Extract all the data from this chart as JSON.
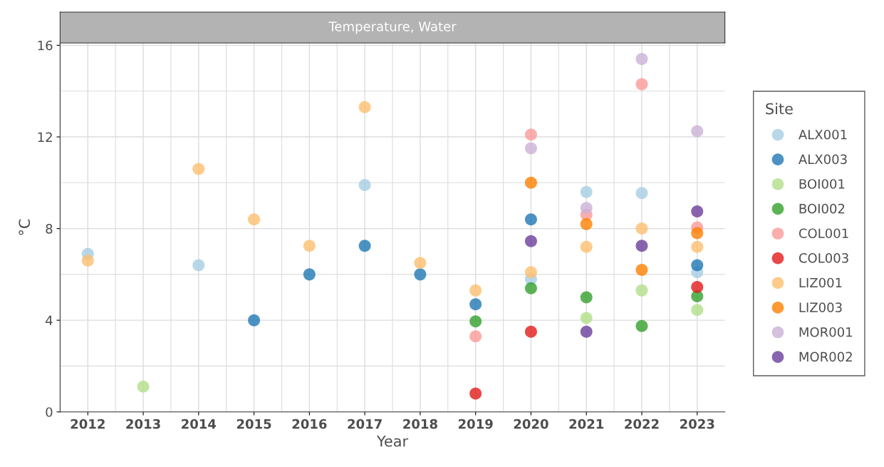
{
  "chart_data": {
    "type": "scatter",
    "title": "Temperature, Water",
    "xlabel": "Year",
    "ylabel": "°C",
    "legend_title": "Site",
    "legend": "right",
    "grid": true,
    "marker": "circle",
    "categories": [
      "2012",
      "2013",
      "2014",
      "2015",
      "2016",
      "2017",
      "2018",
      "2019",
      "2020",
      "2021",
      "2022",
      "2023"
    ],
    "ylim": [
      0,
      16.1
    ],
    "yticks": [
      0,
      4,
      8,
      12,
      16
    ],
    "series": [
      {
        "name": "ALX001",
        "color": "#a6cee3",
        "values": [
          6.9,
          null,
          6.4,
          null,
          null,
          9.9,
          null,
          null,
          5.8,
          9.6,
          9.55,
          6.1
        ]
      },
      {
        "name": "ALX003",
        "color": "#1f78b4",
        "values": [
          null,
          null,
          null,
          4.0,
          6.0,
          7.25,
          6.0,
          4.7,
          8.4,
          null,
          null,
          6.4
        ]
      },
      {
        "name": "BOI001",
        "color": "#b2df8a",
        "values": [
          null,
          1.1,
          null,
          null,
          null,
          null,
          null,
          null,
          null,
          4.1,
          5.3,
          4.45
        ]
      },
      {
        "name": "BOI002",
        "color": "#33a02c",
        "values": [
          null,
          null,
          null,
          null,
          null,
          null,
          null,
          3.95,
          5.4,
          5.0,
          3.75,
          5.05
        ]
      },
      {
        "name": "COL001",
        "color": "#fb9a99",
        "values": [
          null,
          null,
          null,
          null,
          null,
          null,
          null,
          3.3,
          12.1,
          8.6,
          14.3,
          8.05
        ]
      },
      {
        "name": "COL003",
        "color": "#e31a1c",
        "values": [
          null,
          null,
          null,
          null,
          null,
          null,
          null,
          0.8,
          3.5,
          null,
          null,
          5.45
        ]
      },
      {
        "name": "LIZ001",
        "color": "#fdbf6f",
        "values": [
          6.6,
          null,
          10.6,
          8.4,
          7.25,
          13.3,
          6.5,
          5.3,
          6.1,
          7.2,
          8.0,
          7.2
        ]
      },
      {
        "name": "LIZ003",
        "color": "#ff7f00",
        "values": [
          null,
          null,
          null,
          null,
          null,
          null,
          null,
          null,
          10.0,
          8.2,
          6.2,
          7.8
        ]
      },
      {
        "name": "MOR001",
        "color": "#cab2d6",
        "values": [
          null,
          null,
          null,
          null,
          null,
          null,
          null,
          null,
          11.5,
          8.9,
          15.4,
          12.25
        ]
      },
      {
        "name": "MOR002",
        "color": "#6a3d9a",
        "values": [
          null,
          null,
          null,
          null,
          null,
          null,
          null,
          null,
          7.45,
          3.5,
          7.25,
          8.75
        ]
      }
    ]
  }
}
